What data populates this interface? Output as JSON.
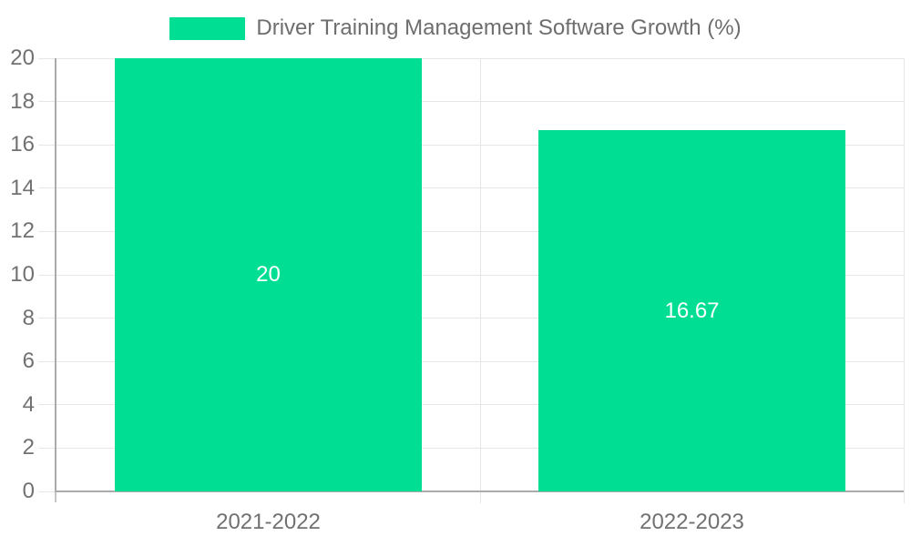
{
  "colors": {
    "bar": "#00DE94",
    "grid": "#E6E6E6",
    "axis": "#ABABAB",
    "axis_minor_tick": "#C6C6C6",
    "tick_label": "#717171",
    "legend_text": "#6E6E6E",
    "value_label": "#FFFFFF",
    "background": "#FFFFFF"
  },
  "legend": {
    "label": "Driver Training Management Software Growth (%)"
  },
  "chart_data": {
    "type": "bar",
    "title": "Driver Training Management Software Growth (%)",
    "xlabel": "",
    "ylabel": "",
    "categories": [
      "2021-2022",
      "2022-2023"
    ],
    "values": [
      20,
      16.67
    ],
    "value_labels": [
      "20",
      "16.67"
    ],
    "ylim": [
      0,
      20
    ],
    "ytick_step": 2,
    "yticks": [
      0,
      2,
      4,
      6,
      8,
      10,
      12,
      14,
      16,
      18,
      20
    ],
    "grid": true,
    "legend_position": "top",
    "bar_color": "#00DE94",
    "value_label_color": "#FFFFFF"
  }
}
